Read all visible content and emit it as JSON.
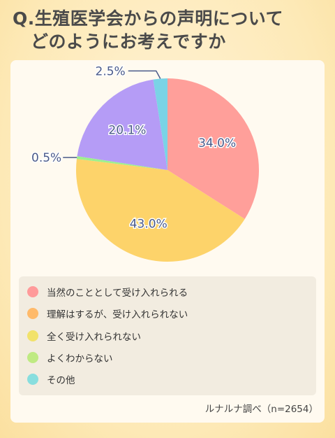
{
  "title": {
    "line1": "Q.生殖医学会からの声明について",
    "line2": "どのようにお考えですか"
  },
  "colors": {
    "slice_1": "#ff9f9a",
    "slice_2": "#fdd36a",
    "slice_3": "#9df08e",
    "slice_4": "#b59cf6",
    "slice_5": "#7ad3e6",
    "label_stroke": "#4a5a8a",
    "legend_1": "#ff9a9a",
    "legend_2": "#ffba6a",
    "legend_3": "#f2e26a",
    "legend_4": "#bfea82",
    "legend_5": "#88dede"
  },
  "chart_data": {
    "type": "pie",
    "slices": [
      {
        "label": "34.0%",
        "value": 34.0
      },
      {
        "label": "43.0%",
        "value": 43.0
      },
      {
        "label": "0.5%",
        "value": 0.5
      },
      {
        "label": "20.1%",
        "value": 20.1
      },
      {
        "label": "2.5%",
        "value": 2.5
      }
    ]
  },
  "legend": {
    "items": [
      {
        "label": "当然のこととして受け入れられる"
      },
      {
        "label": "理解はするが、受け入れられない"
      },
      {
        "label": "全く受け入れられない"
      },
      {
        "label": "よくわからない"
      },
      {
        "label": "その他"
      }
    ]
  },
  "source": "ルナルナ調べ（n=2654）"
}
